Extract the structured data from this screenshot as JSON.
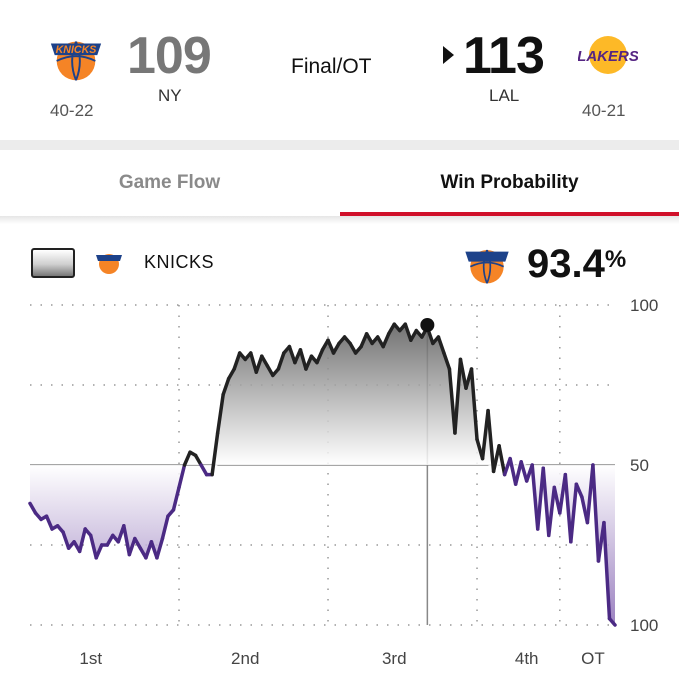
{
  "game": {
    "status": "Final/OT",
    "away": {
      "score": "109",
      "abbr": "NY",
      "record": "40-22",
      "logo_icon": "knicks-logo-icon",
      "color": "#f58426"
    },
    "home": {
      "score": "113",
      "abbr": "LAL",
      "record": "40-21",
      "logo_icon": "lakers-logo-icon",
      "logo_text": "LAKERS",
      "color": "#552583",
      "winner": true
    }
  },
  "tabs": [
    {
      "label": "Game Flow",
      "active": false
    },
    {
      "label": "Win Probability",
      "active": true
    }
  ],
  "legend": {
    "team": "KNICKS",
    "probability": "93.4",
    "probability_unit": "%"
  },
  "chart_data": {
    "type": "line",
    "y_labels": [
      "100",
      "50",
      "100"
    ],
    "x_labels": [
      "1st",
      "2nd",
      "3rd",
      "4th",
      "OT"
    ],
    "ylim": [
      0,
      100
    ],
    "xlim": [
      0,
      53
    ],
    "reference_line": 50,
    "marker": {
      "x": 36,
      "label": "93.4%"
    },
    "colors": {
      "knicks": "#222222",
      "lakers": "#4b2a84"
    },
    "series": [
      {
        "x": [
          0,
          0.5,
          1,
          1.5,
          2,
          2.5,
          3,
          3.5,
          4,
          4.5,
          5,
          5.5,
          6,
          6.5,
          7,
          7.5,
          8,
          8.5,
          9,
          9.5,
          10,
          10.5,
          11,
          11.5,
          12,
          12.5,
          13,
          13.5,
          14,
          14.5,
          15,
          15.5,
          16,
          16.5,
          17,
          17.5,
          18,
          18.5,
          19,
          19.5,
          20,
          20.5,
          21,
          21.5,
          22,
          22.5,
          23,
          23.5,
          24,
          24.5,
          25,
          25.5,
          26,
          26.5,
          27,
          27.5,
          28,
          28.5,
          29,
          29.5,
          30,
          30.5,
          31,
          31.5,
          32,
          32.5,
          33,
          33.5,
          34,
          34.5,
          35,
          35.5,
          36,
          36.5,
          37,
          37.5,
          38,
          38.5,
          39,
          39.5,
          40,
          40.5,
          41,
          41.5,
          42,
          42.5,
          43,
          43.5,
          44,
          44.5,
          45,
          45.5,
          46,
          46.5,
          47,
          47.5,
          48,
          48.5,
          49,
          49.5,
          50,
          50.5,
          51,
          51.5,
          52,
          52.5,
          53
        ],
        "y": [
          38,
          35,
          33,
          34,
          30,
          31,
          29,
          24,
          26,
          23,
          30,
          28,
          21,
          25,
          25,
          28,
          26,
          31,
          22,
          27,
          24,
          21,
          26,
          21,
          27,
          34,
          36,
          43,
          50,
          54,
          53,
          50,
          47,
          47,
          60,
          72,
          77,
          80,
          85,
          83,
          85,
          79,
          84,
          81,
          78,
          80,
          85,
          87,
          82,
          86,
          80,
          84,
          82,
          86,
          89,
          85,
          88,
          90,
          88,
          85,
          87,
          91,
          88,
          90,
          87,
          91,
          94,
          92,
          94,
          89,
          92,
          90,
          93,
          88,
          90,
          85,
          80,
          60,
          83,
          74,
          80,
          58,
          52,
          67,
          48,
          56,
          47,
          52,
          44,
          51,
          45,
          50,
          30,
          49,
          28,
          43,
          35,
          47,
          26,
          44,
          40,
          32,
          50,
          20,
          32,
          2,
          0
        ]
      }
    ]
  }
}
